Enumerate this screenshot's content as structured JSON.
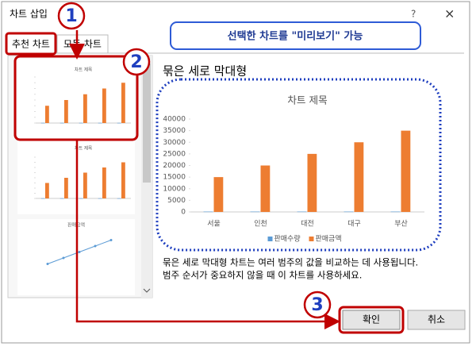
{
  "dialog": {
    "title": "차트 삽입",
    "help": "?",
    "close": "×",
    "tabs": [
      "추천 차트",
      "모든 차트"
    ],
    "callout": "선택한 차트를 \"미리보기\" 가능",
    "badges": [
      "1",
      "2",
      "3"
    ],
    "chart_type_name": "묶은 세로 막대형",
    "description": [
      "묶은 세로 막대형 차트는 여러 범주의 값을 비교하는 데 사용됩니다.",
      "범주 순서가 중요하지 않을 때 이 차트를 사용하세요."
    ],
    "buttons": [
      "확인",
      "취소"
    ],
    "thumbnail_line_title": "판매금액"
  },
  "chart_data": {
    "type": "bar",
    "title": "차트 제목",
    "categories": [
      "서울",
      "인천",
      "대전",
      "대구",
      "부산"
    ],
    "series": [
      {
        "name": "판매수량",
        "color": "#5b9bd5",
        "values": [
          150,
          150,
          150,
          150,
          150
        ]
      },
      {
        "name": "판매금액",
        "color": "#ed7d31",
        "values": [
          15000,
          20000,
          25000,
          30000,
          35000
        ]
      }
    ],
    "ylim": [
      0,
      40000
    ],
    "yticks": [
      0,
      5000,
      10000,
      15000,
      20000,
      25000,
      30000,
      35000,
      40000
    ],
    "grid": false
  }
}
